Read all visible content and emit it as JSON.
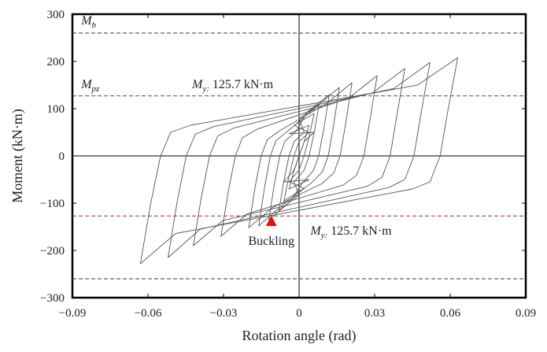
{
  "chart_data": {
    "type": "line",
    "title": "",
    "xlabel": "Rotation angle (rad)",
    "ylabel": "Moment (kN·m)",
    "xlim": [
      -0.09,
      0.09
    ],
    "ylim": [
      -300,
      300
    ],
    "x_ticks": [
      -0.09,
      -0.06,
      -0.03,
      0,
      0.03,
      0.06,
      0.09
    ],
    "x_tick_labels": [
      "−0.09",
      "−0.06",
      "−0.03",
      "0",
      "0.03",
      "0.06",
      "0.09"
    ],
    "y_ticks": [
      -300,
      -200,
      -100,
      0,
      100,
      200,
      300
    ],
    "y_tick_labels": [
      "−300",
      "−200",
      "−100",
      "0",
      "100",
      "200",
      "300"
    ],
    "grid": false,
    "series": [
      {
        "line_color": "#555555",
        "loops": [
          {
            "xmax": 0.004,
            "ymax": 65,
            "xmin": -0.004,
            "ymin": -70
          },
          {
            "xmax": 0.006,
            "ymax": 90,
            "xmin": -0.006,
            "ymin": -95
          },
          {
            "xmax": 0.008,
            "ymax": 110,
            "xmin": -0.008,
            "ymin": -115
          },
          {
            "xmax": 0.012,
            "ymax": 130,
            "xmin": -0.012,
            "ymin": -135
          },
          {
            "xmax": 0.016,
            "ymax": 145,
            "xmin": -0.016,
            "ymin": -148
          },
          {
            "xmax": 0.021,
            "ymax": 155,
            "xmin": -0.02,
            "ymin": -152
          },
          {
            "xmax": 0.031,
            "ymax": 170,
            "xmin": -0.031,
            "ymin": -170
          },
          {
            "xmax": 0.042,
            "ymax": 185,
            "xmin": -0.042,
            "ymin": -190
          },
          {
            "xmax": 0.052,
            "ymax": 198,
            "xmin": -0.052,
            "ymin": -215
          },
          {
            "xmax": 0.063,
            "ymax": 208,
            "xmin": -0.063,
            "ymin": -228
          }
        ]
      }
    ],
    "reference_lines": [
      {
        "value": 260,
        "color": "#1f3a6b",
        "style": "dashed"
      },
      {
        "value": 127,
        "color": "#a8272b",
        "style": "dashed"
      },
      {
        "value": -127,
        "color": "#a8272b",
        "style": "dashed"
      },
      {
        "value": -260,
        "color": "#1f3a6b",
        "style": "dashed"
      }
    ],
    "annotations": {
      "mb": {
        "main": "M",
        "sub": "b",
        "x": -0.089,
        "y": 285
      },
      "mpz": {
        "main": "M",
        "sub": "pz",
        "x": -0.089,
        "y": 150
      },
      "my_upper": {
        "main": "M",
        "sub": "y:",
        "value": " 125.7 kN·m",
        "x": -0.045,
        "y": 150
      },
      "my_lower": {
        "main": "M",
        "sub": "y:",
        "value": " 125.7 kN·m",
        "x": 0.002,
        "y": -160
      },
      "buckling": {
        "text": "Buckling",
        "x": -0.011,
        "y": -188
      }
    },
    "marker": {
      "shape": "triangle",
      "x": -0.011,
      "y": -140,
      "color": "#e01010"
    }
  }
}
